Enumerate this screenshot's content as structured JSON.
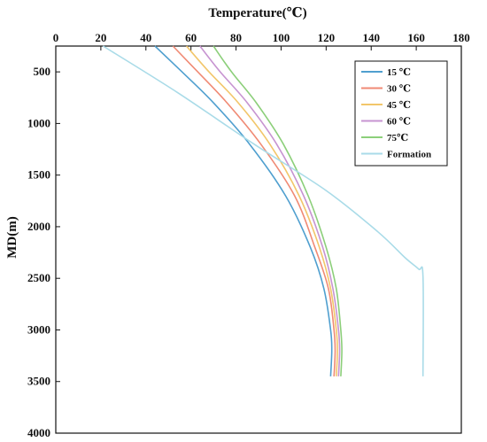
{
  "chart_data": {
    "type": "line",
    "xlabel": "Temperature(℃)",
    "ylabel": "MD(m)",
    "xlim": [
      0,
      180
    ],
    "ylim": [
      4000,
      250
    ],
    "x_axis_position": "top",
    "y_axis_inverted": true,
    "x_ticks": [
      0,
      20,
      40,
      60,
      80,
      100,
      120,
      140,
      160,
      180
    ],
    "y_ticks": [
      500,
      1000,
      1500,
      2000,
      2500,
      3000,
      3500,
      4000
    ],
    "grid": false,
    "legend_position": "top-right",
    "series": [
      {
        "name": "15 ℃",
        "color": "#4f9fcf",
        "points": [
          [
            44,
            250
          ],
          [
            56,
            500
          ],
          [
            70,
            800
          ],
          [
            86,
            1200
          ],
          [
            102,
            1700
          ],
          [
            113,
            2200
          ],
          [
            119,
            2600
          ],
          [
            122,
            3000
          ],
          [
            122.5,
            3200
          ],
          [
            122,
            3450
          ]
        ]
      },
      {
        "name": "30 ℃",
        "color": "#f08a74",
        "points": [
          [
            52,
            250
          ],
          [
            63,
            500
          ],
          [
            76,
            800
          ],
          [
            91,
            1200
          ],
          [
            106,
            1700
          ],
          [
            115,
            2200
          ],
          [
            121,
            2600
          ],
          [
            123.5,
            3000
          ],
          [
            124,
            3200
          ],
          [
            123.5,
            3450
          ]
        ]
      },
      {
        "name": "45 ℃",
        "color": "#f2c66a",
        "points": [
          [
            58,
            250
          ],
          [
            68,
            500
          ],
          [
            81,
            800
          ],
          [
            95,
            1200
          ],
          [
            108,
            1700
          ],
          [
            117,
            2200
          ],
          [
            122,
            2600
          ],
          [
            124.5,
            3000
          ],
          [
            125,
            3200
          ],
          [
            124.5,
            3450
          ]
        ]
      },
      {
        "name": "60 ℃",
        "color": "#c794d1",
        "points": [
          [
            64,
            250
          ],
          [
            73,
            500
          ],
          [
            85,
            800
          ],
          [
            98,
            1200
          ],
          [
            110,
            1700
          ],
          [
            118.5,
            2200
          ],
          [
            123,
            2600
          ],
          [
            125.5,
            3000
          ],
          [
            126,
            3200
          ],
          [
            125.5,
            3450
          ]
        ]
      },
      {
        "name": "75℃",
        "color": "#8ccf7a",
        "points": [
          [
            70,
            250
          ],
          [
            78,
            500
          ],
          [
            89,
            800
          ],
          [
            101,
            1200
          ],
          [
            112,
            1700
          ],
          [
            120,
            2200
          ],
          [
            124.5,
            2600
          ],
          [
            126.5,
            3000
          ],
          [
            127,
            3200
          ],
          [
            126.5,
            3450
          ]
        ]
      },
      {
        "name": "Formation",
        "color": "#a9dbe8",
        "points": [
          [
            21,
            250
          ],
          [
            54,
            700
          ],
          [
            88,
            1200
          ],
          [
            120,
            1650
          ],
          [
            143,
            2050
          ],
          [
            155,
            2300
          ],
          [
            161,
            2410
          ],
          [
            163,
            2480
          ],
          [
            163,
            3450
          ]
        ]
      }
    ]
  }
}
